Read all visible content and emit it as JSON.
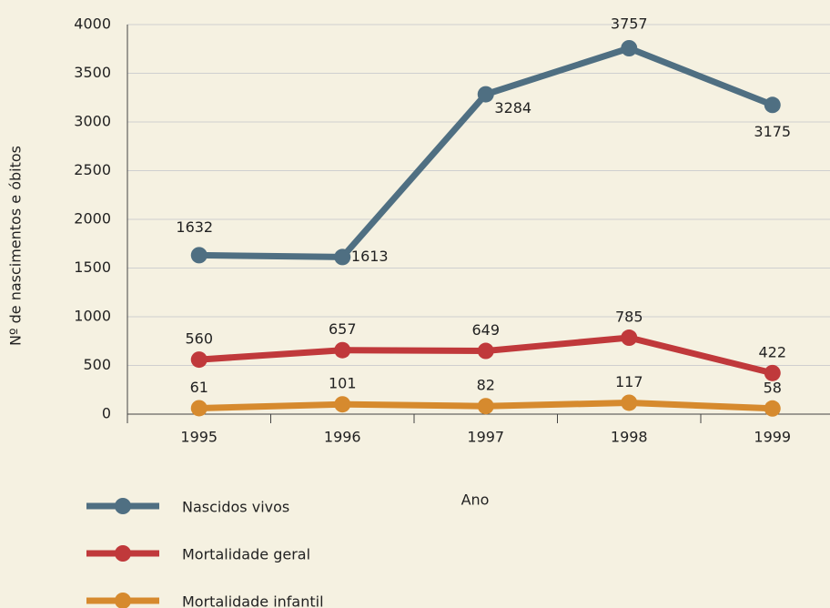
{
  "chart_data": {
    "type": "line",
    "x_label": "Ano",
    "y_label": "Nº de nascimentos e óbitos",
    "categories": [
      "1995",
      "1996",
      "1997",
      "1998",
      "1999"
    ],
    "series": [
      {
        "name": "Nascidos vivos",
        "color": "#4f6f82",
        "values": [
          1632,
          1613,
          3284,
          3757,
          3175
        ]
      },
      {
        "name": "Mortalidade geral",
        "color": "#c0393b",
        "values": [
          560,
          657,
          649,
          785,
          422
        ]
      },
      {
        "name": "Mortalidade infantil",
        "color": "#d68a2e",
        "values": [
          61,
          101,
          82,
          117,
          58
        ]
      }
    ],
    "ylim": [
      0,
      4000
    ],
    "yticks": [
      0,
      500,
      1000,
      1500,
      2000,
      2500,
      3000,
      3500,
      4000
    ],
    "grid": true
  }
}
